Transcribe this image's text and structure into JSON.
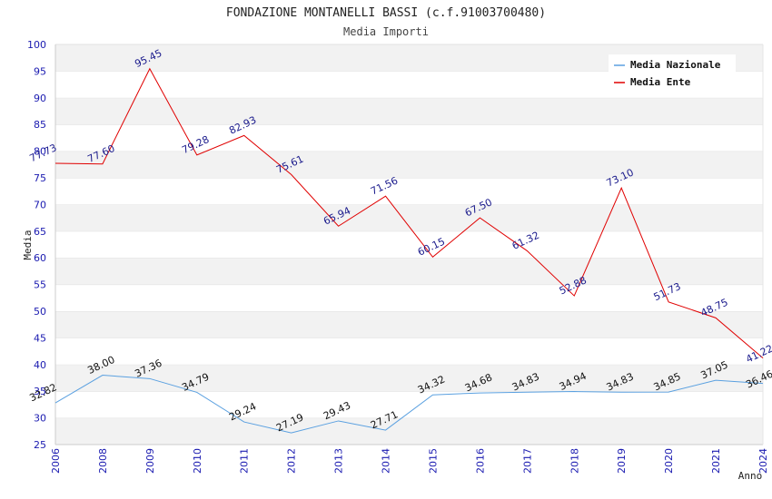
{
  "chart_data": {
    "type": "line",
    "title": "FONDAZIONE MONTANELLI BASSI (c.f.91003700480)",
    "subtitle": "Media Importi",
    "xlabel": "Anno",
    "ylabel": "Media",
    "ylim": [
      25,
      100
    ],
    "yticks": [
      "25",
      "30",
      "35",
      "40",
      "45",
      "50",
      "55",
      "60",
      "65",
      "70",
      "75",
      "80",
      "85",
      "90",
      "95",
      "100"
    ],
    "x": [
      "2006",
      "2008",
      "2009",
      "2010",
      "2011",
      "2012",
      "2013",
      "2014",
      "2015",
      "2016",
      "2017",
      "2018",
      "2019",
      "2020",
      "2021",
      "2024"
    ],
    "grid": "horizontal-bands",
    "legend_position": "top-right",
    "series": [
      {
        "name": "Media Nazionale",
        "color": "#5aa0e0",
        "values": [
          32.82,
          38.0,
          37.36,
          34.79,
          29.24,
          27.19,
          29.43,
          27.71,
          34.32,
          34.68,
          34.83,
          34.94,
          34.83,
          34.85,
          37.05,
          36.46
        ],
        "labels": [
          "32.82",
          "38.00",
          "37.36",
          "34.79",
          "29.24",
          "27.19",
          "29.43",
          "27.71",
          "34.32",
          "34.68",
          "34.83",
          "34.94",
          "34.83",
          "34.85",
          "37.05",
          "36.46"
        ]
      },
      {
        "name": "Media Ente",
        "color": "#e00000",
        "values": [
          77.73,
          77.6,
          95.45,
          79.28,
          82.93,
          75.61,
          65.94,
          71.56,
          60.15,
          67.5,
          61.32,
          52.88,
          73.1,
          51.73,
          48.75,
          41.22
        ],
        "labels": [
          "77.73",
          "77.60",
          "95.45",
          "79.28",
          "82.93",
          "75.61",
          "65.94",
          "71.56",
          "60.15",
          "67.50",
          "61.32",
          "52.88",
          "73.10",
          "51.73",
          "48.75",
          "41.22"
        ]
      }
    ]
  }
}
